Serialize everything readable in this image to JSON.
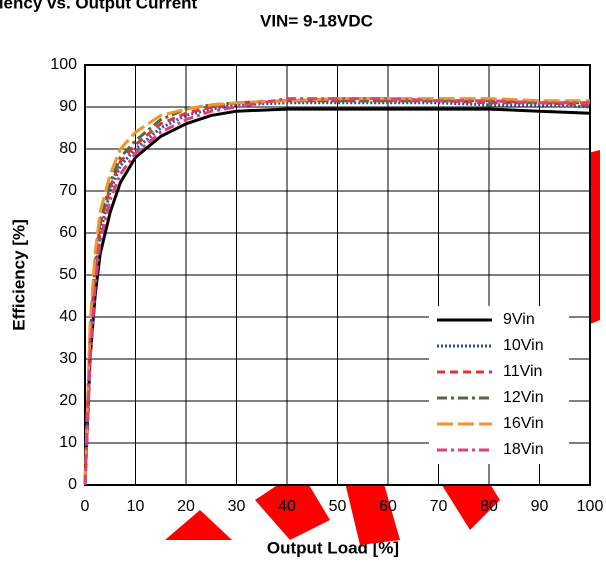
{
  "chart_data": {
    "type": "line",
    "title": "Efficiency vs. Output Current",
    "subtitle": "VIN= 9-18VDC",
    "x_label": "Output Load [%]",
    "y_label": "Efficiency [%]",
    "x": [
      0,
      1,
      2,
      3,
      5,
      7,
      10,
      15,
      20,
      25,
      30,
      40,
      50,
      60,
      70,
      80,
      90,
      100
    ],
    "series": [
      {
        "name": "9Vin",
        "color": "#000000",
        "dash": "solid",
        "values": [
          0,
          30,
          45,
          55,
          65,
          72,
          78,
          83,
          86,
          88,
          89,
          89.5,
          89.5,
          89.5,
          89.5,
          89.5,
          89,
          88.5
        ]
      },
      {
        "name": "10Vin",
        "color": "#2b4fa8",
        "dash": "dotted",
        "values": [
          0,
          35,
          50,
          60,
          70,
          76,
          80,
          85,
          88,
          89.5,
          90.5,
          91,
          91,
          91,
          91,
          90.5,
          90.5,
          90
        ]
      },
      {
        "name": "11Vin",
        "color": "#e83030",
        "dash": "dashed",
        "values": [
          0,
          35,
          52,
          62,
          71,
          77,
          81,
          86,
          88.5,
          90,
          91,
          91.5,
          91.5,
          91.5,
          91.5,
          91,
          91,
          90.5
        ]
      },
      {
        "name": "12Vin",
        "color": "#4a6e3a",
        "dash": "dashdot",
        "values": [
          0,
          36,
          53,
          63,
          72,
          78,
          82,
          87,
          89.5,
          90.5,
          91,
          91.5,
          91.5,
          91.5,
          91.5,
          91.5,
          91,
          91
        ]
      },
      {
        "name": "16Vin",
        "color": "#f5922a",
        "dash": "longdash",
        "values": [
          0,
          38,
          55,
          65,
          74,
          80,
          84,
          88,
          89.5,
          90.5,
          91,
          91.5,
          92,
          92,
          92,
          92,
          91.5,
          91.5
        ]
      },
      {
        "name": "18Vin",
        "color": "#e0407a",
        "dash": "dashdot",
        "values": [
          0,
          30,
          47,
          58,
          68,
          74,
          79,
          84,
          87,
          89,
          90,
          92,
          92,
          92,
          91.5,
          91.5,
          91,
          91
        ]
      }
    ],
    "xlim": [
      0,
      100
    ],
    "xticks": [
      0,
      10,
      20,
      30,
      40,
      50,
      60,
      70,
      80,
      90,
      100
    ],
    "ylim": [
      0,
      100
    ],
    "yticks": [
      0,
      10,
      20,
      30,
      40,
      50,
      60,
      70,
      80,
      90,
      100
    ],
    "grid": true,
    "legend": "lower right"
  }
}
